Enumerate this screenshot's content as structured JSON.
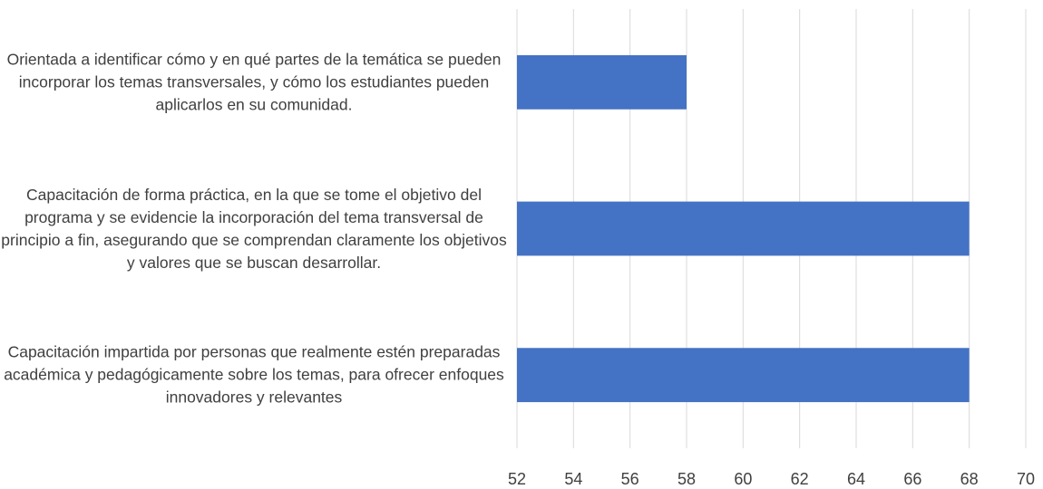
{
  "chart_data": {
    "type": "bar",
    "orientation": "horizontal",
    "categories": [
      "Orientada a identificar cómo y en qué partes de la temática se pueden incorporar los temas transversales, y cómo los estudiantes pueden aplicarlos en su comunidad.",
      "Capacitación de forma práctica, en la que se tome el objetivo del programa y se evidencie la incorporación del tema transversal de principio a fin, asegurando que se comprendan claramente los objetivos y valores que se buscan desarrollar.",
      "Capacitación impartida por personas que realmente estén preparadas académica y pedagógicamente sobre los temas, para ofrecer enfoques innovadores y relevantes"
    ],
    "values": [
      58,
      68,
      68
    ],
    "color": "#4472c4",
    "xlim": [
      52,
      70
    ],
    "xticks": [
      52,
      54,
      56,
      58,
      60,
      62,
      64,
      66,
      68,
      70
    ],
    "grid": true
  }
}
